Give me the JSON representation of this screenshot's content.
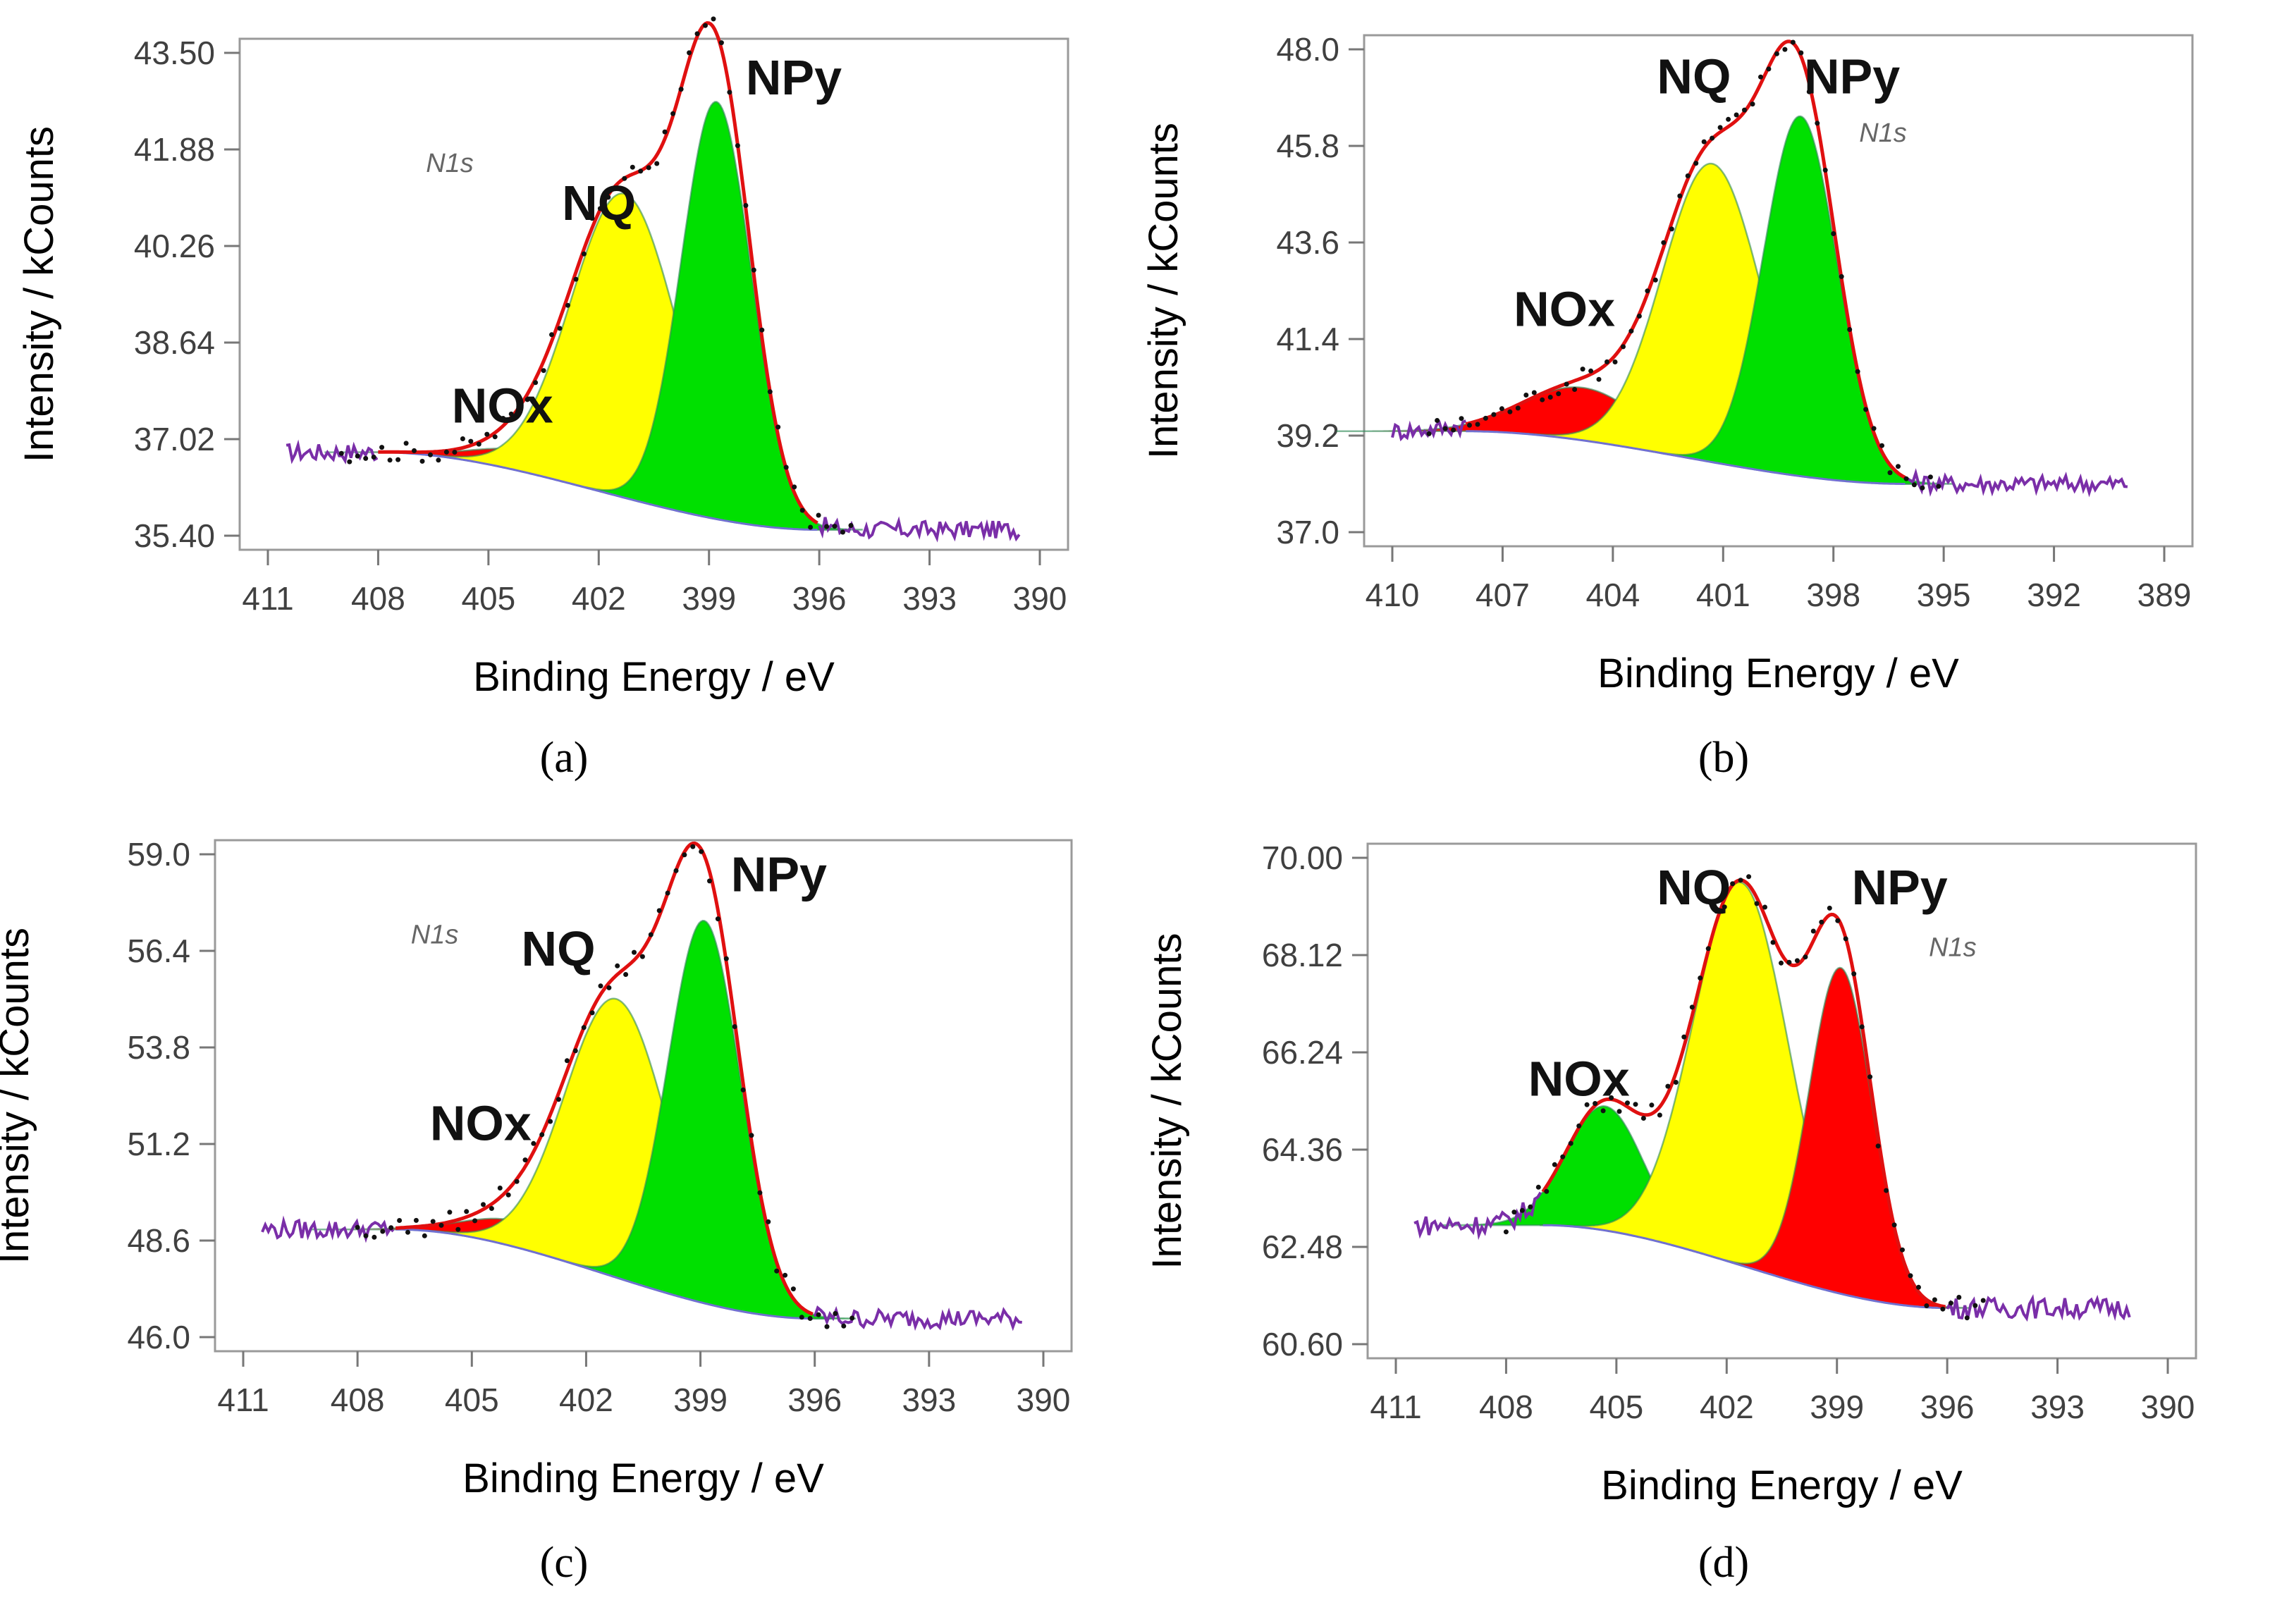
{
  "chart_data": [
    {
      "type": "line",
      "panel_label": "a",
      "caption": "(a)",
      "xlabel": "Binding Energy / eV",
      "ylabel": "Intensity / kCounts",
      "xlim": [
        411,
        390
      ],
      "ylim": [
        35.4,
        43.5
      ],
      "xticks": [
        "411",
        "408",
        "405",
        "402",
        "399",
        "396",
        "393",
        "390"
      ],
      "yticks": [
        "35.40",
        "37.02",
        "38.64",
        "40.26",
        "41.88",
        "43.50"
      ],
      "region_label": "N1s",
      "background": {
        "x_start": 410.5,
        "x_end": 390.5,
        "left_level": 36.8,
        "right_level": 35.5,
        "peak_x_start": 408,
        "peak_x_end": 396
      },
      "components": [
        {
          "name": "NOx",
          "color": "#ff0000",
          "center": 404.0,
          "height": 0.35,
          "width": 1.3
        },
        {
          "name": "NQ",
          "color": "#ffff00",
          "center": 401.3,
          "height": 5.1,
          "width": 1.45
        },
        {
          "name": "NPy",
          "color": "#00e000",
          "center": 398.8,
          "height": 7.0,
          "width": 0.95
        }
      ],
      "peak_labels": [
        {
          "text": "NOx",
          "x": 406.0,
          "y": 37.3
        },
        {
          "text": "NQ",
          "x": 403.0,
          "y": 40.7
        },
        {
          "text": "NPy",
          "x": 398.0,
          "y": 42.8
        }
      ],
      "n1s_label_pos": {
        "x": 406.7,
        "y": 41.5
      },
      "noise": 0.15
    },
    {
      "type": "line",
      "panel_label": "b",
      "caption": "(b)",
      "xlabel": "Binding Energy / eV",
      "ylabel": "Intensity / kCounts",
      "xlim": [
        410,
        389
      ],
      "ylim": [
        37.0,
        48.0
      ],
      "xticks": [
        "410",
        "407",
        "404",
        "401",
        "398",
        "395",
        "392",
        "389"
      ],
      "yticks": [
        "37.0",
        "39.2",
        "41.4",
        "43.6",
        "45.8",
        "48.0"
      ],
      "region_label": "N1s",
      "background": {
        "x_start": 410,
        "x_end": 390,
        "left_level": 39.3,
        "right_level": 38.1,
        "peak_x_start": 408,
        "peak_x_end": 396
      },
      "components": [
        {
          "name": "NOx",
          "color": "#ff0000",
          "center": 404.8,
          "height": 1.2,
          "width": 1.6
        },
        {
          "name": "NQ",
          "color": "#ffff00",
          "center": 401.3,
          "height": 6.8,
          "width": 1.35
        },
        {
          "name": "NPy",
          "color": "#00e000",
          "center": 398.9,
          "height": 8.2,
          "width": 1.0
        }
      ],
      "peak_labels": [
        {
          "text": "NOx",
          "x": 406.7,
          "y": 41.7
        },
        {
          "text": "NQ",
          "x": 402.8,
          "y": 47.0
        },
        {
          "text": "NPy",
          "x": 398.8,
          "y": 47.0
        }
      ],
      "n1s_label_pos": {
        "x": 397.3,
        "y": 45.9
      },
      "noise": 0.2
    },
    {
      "type": "line",
      "panel_label": "c",
      "caption": "(c)",
      "xlabel": "Binding Energy / eV",
      "ylabel": "Intensity / kCounts",
      "xlim": [
        411,
        390
      ],
      "ylim": [
        46.0,
        59.0
      ],
      "xticks": [
        "411",
        "408",
        "405",
        "402",
        "399",
        "396",
        "393",
        "390"
      ],
      "yticks": [
        "46.0",
        "48.6",
        "51.2",
        "53.8",
        "56.4",
        "59.0"
      ],
      "region_label": "N1s",
      "background": {
        "x_start": 410.5,
        "x_end": 390.5,
        "left_level": 48.9,
        "right_level": 46.5,
        "peak_x_start": 407,
        "peak_x_end": 396
      },
      "components": [
        {
          "name": "NOx",
          "color": "#ff0000",
          "center": 403.8,
          "height": 0.7,
          "width": 1.3
        },
        {
          "name": "NQ",
          "color": "#ffff00",
          "center": 401.2,
          "height": 7.5,
          "width": 1.35
        },
        {
          "name": "NPy",
          "color": "#00e000",
          "center": 398.9,
          "height": 10.3,
          "width": 0.95
        }
      ],
      "peak_labels": [
        {
          "text": "NOx",
          "x": 406.1,
          "y": 51.3
        },
        {
          "text": "NQ",
          "x": 403.7,
          "y": 56.0
        },
        {
          "text": "NPy",
          "x": 398.2,
          "y": 58.0
        }
      ],
      "n1s_label_pos": {
        "x": 406.6,
        "y": 56.6
      },
      "noise": 0.25
    },
    {
      "type": "line",
      "panel_label": "d",
      "caption": "(d)",
      "xlabel": "Binding Energy / eV",
      "ylabel": "Intensity / kCounts",
      "xlim": [
        411,
        390
      ],
      "ylim": [
        60.6,
        70.0
      ],
      "xticks": [
        "411",
        "408",
        "405",
        "402",
        "399",
        "396",
        "393",
        "390"
      ],
      "yticks": [
        "60.60",
        "62.48",
        "64.36",
        "66.24",
        "68.12",
        "70.00"
      ],
      "region_label": "N1s",
      "background": {
        "x_start": 410.5,
        "x_end": 391,
        "left_level": 62.9,
        "right_level": 61.3,
        "peak_x_start": 407,
        "peak_x_end": 396
      },
      "components": [
        {
          "name": "NOx",
          "color": "#00e000",
          "center": 405.3,
          "height": 2.4,
          "width": 1.05
        },
        {
          "name": "NQ",
          "color": "#ffff00",
          "center": 401.6,
          "height": 7.4,
          "width": 1.3
        },
        {
          "name": "NPy",
          "color": "#ff0000",
          "center": 398.9,
          "height": 6.3,
          "width": 0.85
        }
      ],
      "peak_labels": [
        {
          "text": "NOx",
          "x": 407.4,
          "y": 65.4
        },
        {
          "text": "NQ",
          "x": 403.9,
          "y": 69.1
        },
        {
          "text": "NPy",
          "x": 398.6,
          "y": 69.1
        }
      ],
      "n1s_label_pos": {
        "x": 396.5,
        "y": 68.1
      },
      "noise": 0.2
    }
  ]
}
